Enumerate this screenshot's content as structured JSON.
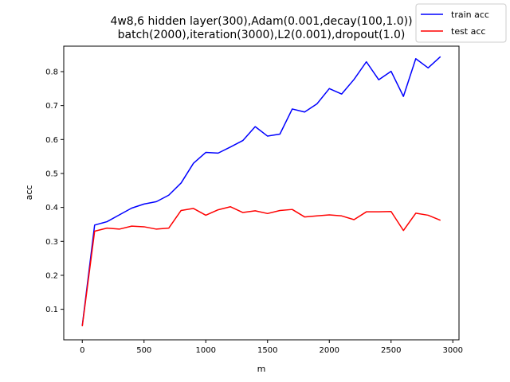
{
  "chart_data": {
    "type": "line",
    "title_lines": [
      "4w8,6 hidden layer(300),Adam(0.001,decay(100,1.0))",
      "batch(2000),iteration(3000),L2(0.001),dropout(1.0)"
    ],
    "xlabel": "m",
    "ylabel": "acc",
    "xlim": [
      -150,
      3050
    ],
    "ylim": [
      0.01,
      0.875
    ],
    "x_ticks": [
      0,
      500,
      1000,
      1500,
      2000,
      2500,
      3000
    ],
    "y_ticks": [
      0.1,
      0.2,
      0.3,
      0.4,
      0.5,
      0.6,
      0.7,
      0.8
    ],
    "legend_position": "top-right",
    "x": [
      0,
      100,
      200,
      300,
      400,
      500,
      600,
      700,
      800,
      900,
      1000,
      1100,
      1200,
      1300,
      1400,
      1500,
      1600,
      1700,
      1800,
      1900,
      2000,
      2100,
      2200,
      2300,
      2400,
      2500,
      2600,
      2700,
      2800,
      2900
    ],
    "series": [
      {
        "name": "train acc",
        "color": "#0000ff",
        "values": [
          0.052,
          0.348,
          0.358,
          0.378,
          0.398,
          0.41,
          0.417,
          0.436,
          0.472,
          0.53,
          0.562,
          0.56,
          0.578,
          0.597,
          0.638,
          0.61,
          0.616,
          0.69,
          0.681,
          0.705,
          0.75,
          0.734,
          0.777,
          0.829,
          0.776,
          0.801,
          0.727,
          0.838,
          0.811,
          0.844
        ]
      },
      {
        "name": "test acc",
        "color": "#ff0000",
        "values": [
          0.05,
          0.33,
          0.339,
          0.336,
          0.345,
          0.343,
          0.336,
          0.339,
          0.391,
          0.397,
          0.377,
          0.393,
          0.402,
          0.385,
          0.39,
          0.382,
          0.391,
          0.394,
          0.372,
          0.375,
          0.378,
          0.375,
          0.364,
          0.387,
          0.387,
          0.388,
          0.332,
          0.383,
          0.377,
          0.362
        ]
      }
    ]
  }
}
